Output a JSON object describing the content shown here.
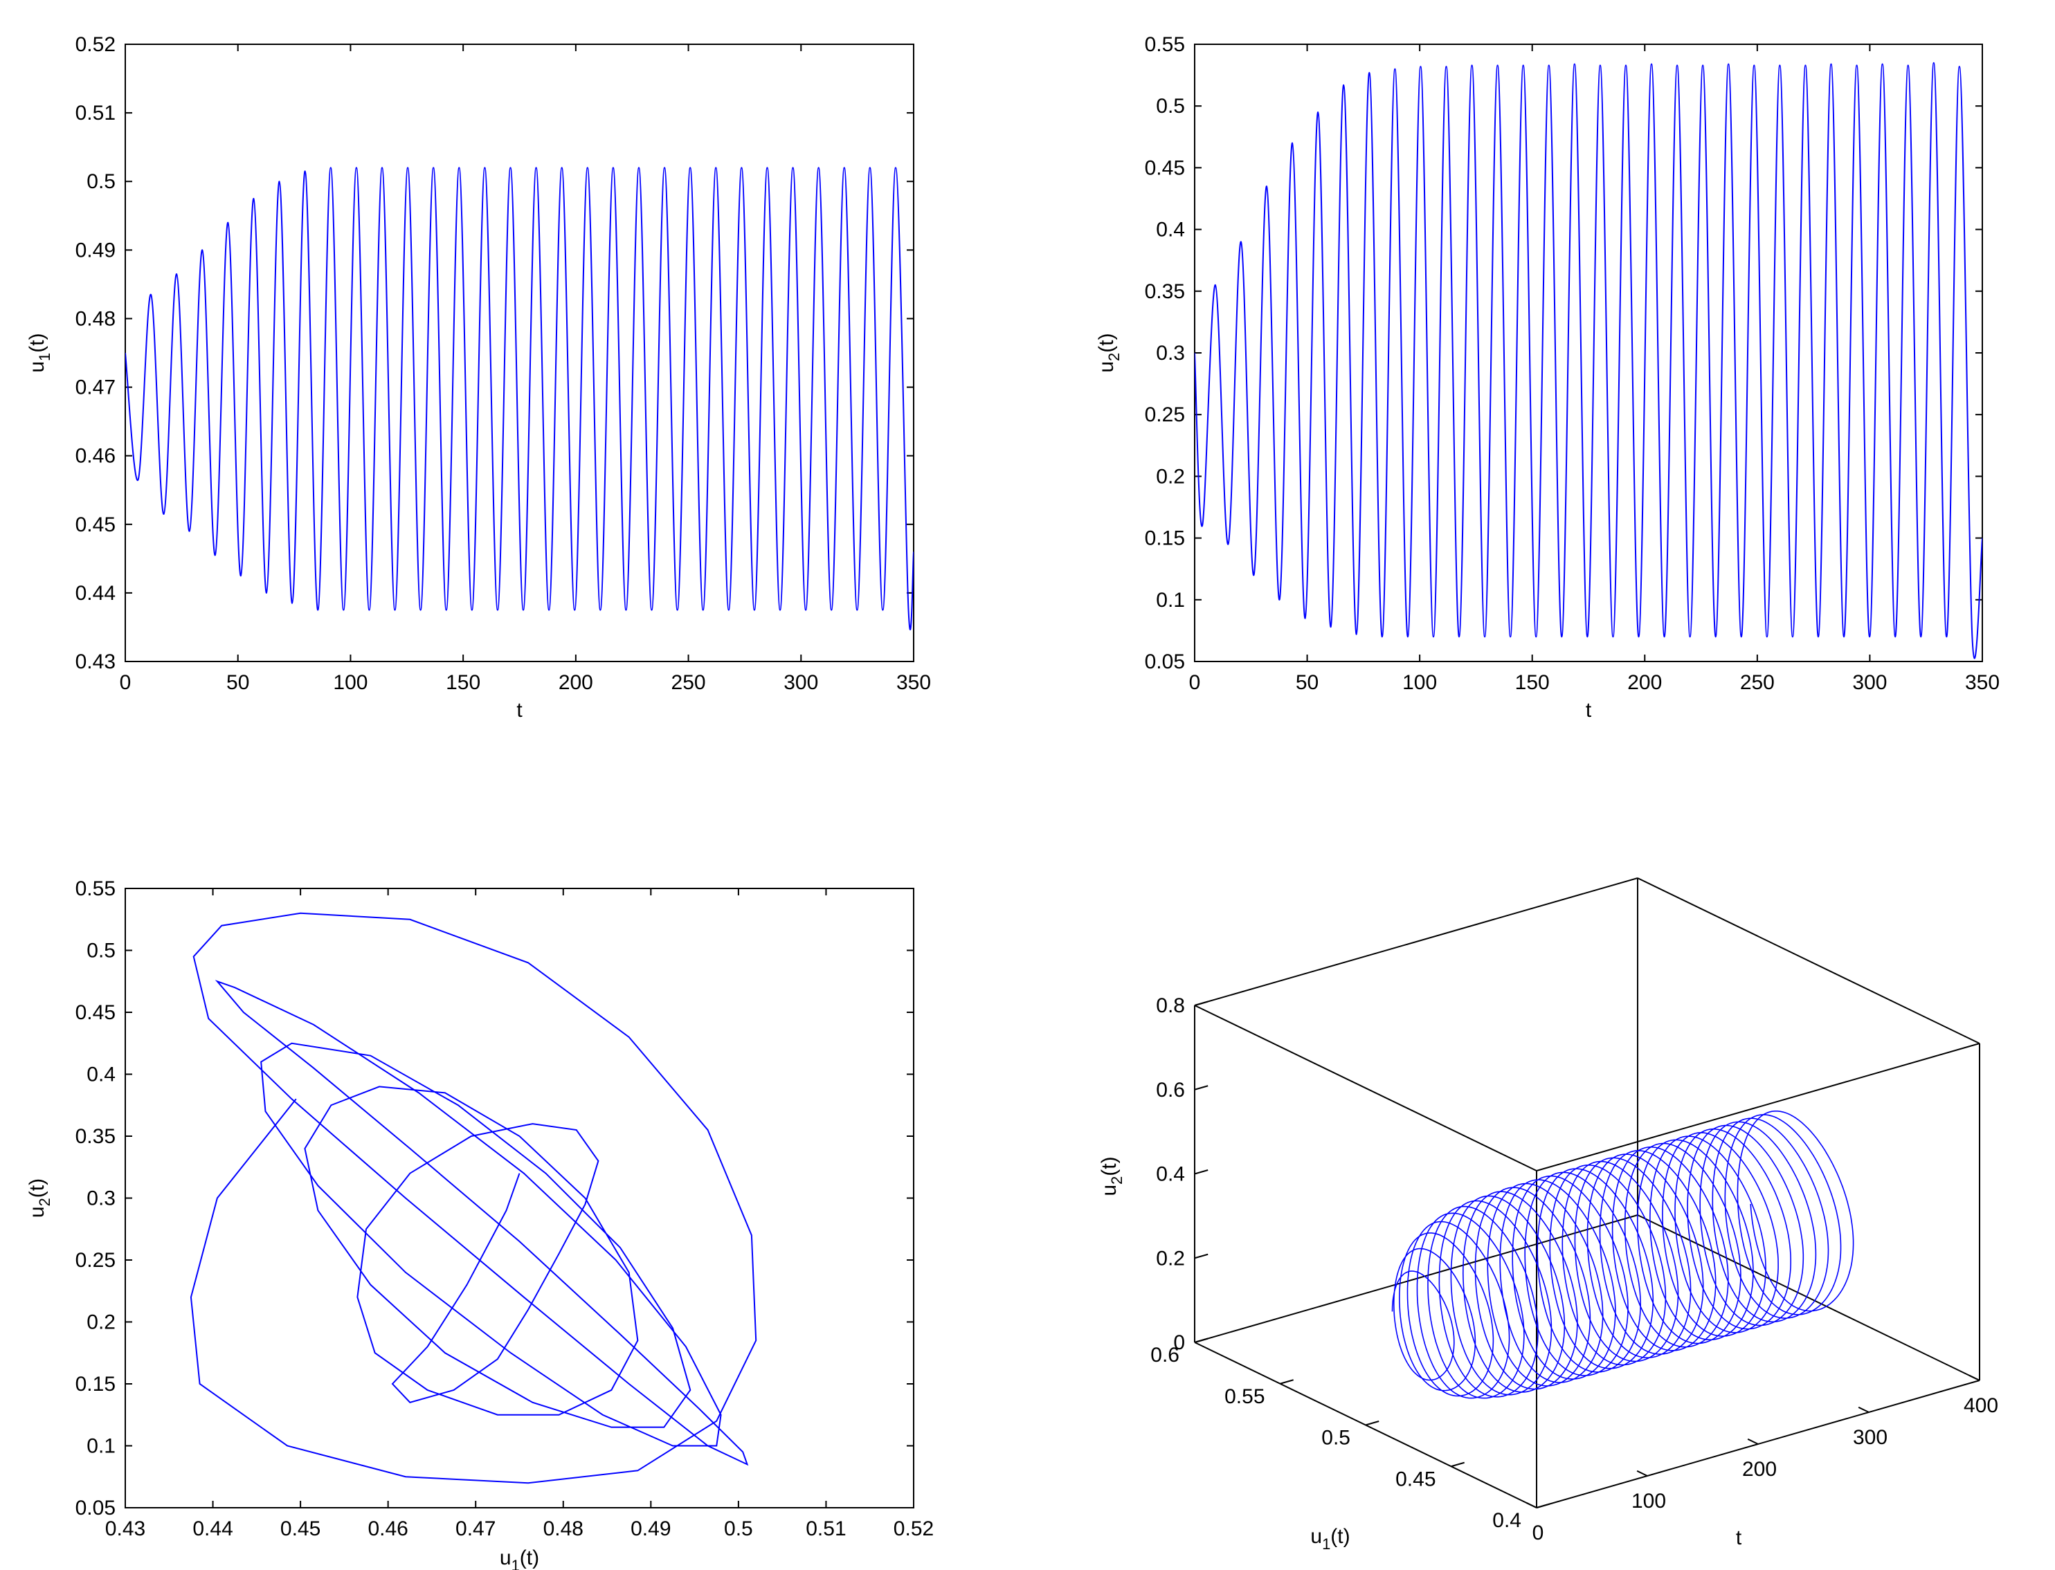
{
  "chart_data": [
    {
      "type": "line",
      "panel": "top-left",
      "xlabel": "t",
      "ylabel_base": "u",
      "ylabel_sub": "1",
      "ylabel_tail": "(t)",
      "xlim": [
        0,
        350
      ],
      "ylim": [
        0.43,
        0.52
      ],
      "xticks": [
        "0",
        "50",
        "100",
        "150",
        "200",
        "250",
        "300",
        "350"
      ],
      "yticks": [
        "0.43",
        "0.44",
        "0.45",
        "0.46",
        "0.47",
        "0.48",
        "0.49",
        "0.5",
        "0.51",
        "0.52"
      ],
      "grid": false,
      "series": [
        {
          "color": "#0000ff",
          "x": [
            0,
            5.7,
            11.4,
            17.1,
            22.8,
            28.5,
            34.2,
            39.9,
            45.6,
            51.3,
            57.0,
            62.7,
            68.4,
            74.1,
            79.8,
            85.5,
            91.2,
            96.9,
            102.6,
            108.3,
            114.0,
            119.7,
            125.4,
            131.1,
            136.8,
            142.5,
            148.2,
            153.9,
            159.6,
            165.3,
            171.0,
            176.7,
            182.4,
            188.1,
            193.8,
            199.5,
            205.2,
            210.9,
            216.6,
            222.3,
            228.0,
            233.7,
            239.4,
            245.1,
            250.8,
            256.5,
            262.2,
            267.9,
            273.6,
            279.3,
            285.0,
            290.7,
            296.4,
            302.1,
            307.8,
            313.5,
            319.2,
            324.9,
            330.6,
            336.3,
            342.0,
            347.7,
            350
          ],
          "y": [
            0.475,
            0.4565,
            0.4835,
            0.4515,
            0.4865,
            0.449,
            0.49,
            0.4455,
            0.494,
            0.4425,
            0.4975,
            0.44,
            0.5,
            0.4385,
            0.5015,
            0.4375,
            0.502,
            0.4375,
            0.502,
            0.4375,
            0.502,
            0.4375,
            0.502,
            0.4375,
            0.502,
            0.4375,
            0.502,
            0.4375,
            0.502,
            0.4375,
            0.502,
            0.4375,
            0.502,
            0.4375,
            0.502,
            0.4375,
            0.502,
            0.4375,
            0.502,
            0.4375,
            0.502,
            0.4375,
            0.502,
            0.4375,
            0.502,
            0.4375,
            0.502,
            0.4375,
            0.502,
            0.4375,
            0.502,
            0.4375,
            0.502,
            0.4375,
            0.502,
            0.4375,
            0.502,
            0.4375,
            0.502,
            0.4375,
            0.502,
            0.4375,
            0.446
          ]
        }
      ]
    },
    {
      "type": "line",
      "panel": "top-right",
      "xlabel": "t",
      "ylabel_base": "u",
      "ylabel_sub": "2",
      "ylabel_tail": "(t)",
      "xlim": [
        0,
        350
      ],
      "ylim": [
        0.05,
        0.55
      ],
      "xticks": [
        "0",
        "50",
        "100",
        "150",
        "200",
        "250",
        "300",
        "350"
      ],
      "yticks": [
        "0.05",
        "0.1",
        "0.15",
        "0.2",
        "0.25",
        "0.3",
        "0.35",
        "0.4",
        "0.45",
        "0.5",
        "0.55"
      ],
      "grid": false,
      "series": [
        {
          "color": "#0000ff",
          "x": [
            0,
            3.4,
            9.2,
            14.9,
            20.6,
            26.3,
            32.0,
            37.7,
            43.4,
            49.1,
            54.8,
            60.5,
            66.2,
            71.9,
            77.6,
            83.3,
            89.0,
            94.7,
            100.4,
            106.1,
            111.8,
            117.5,
            123.2,
            128.9,
            134.6,
            140.3,
            146.0,
            151.7,
            157.4,
            163.1,
            168.8,
            174.5,
            180.2,
            185.9,
            191.6,
            197.3,
            203.0,
            208.7,
            214.4,
            220.1,
            225.8,
            231.5,
            237.2,
            242.9,
            248.6,
            254.3,
            260.0,
            265.7,
            271.4,
            277.1,
            282.8,
            288.5,
            294.2,
            299.9,
            305.6,
            311.3,
            317.0,
            322.7,
            328.4,
            334.1,
            339.8,
            345.5,
            350
          ],
          "y": [
            0.3,
            0.16,
            0.355,
            0.145,
            0.39,
            0.12,
            0.435,
            0.1,
            0.47,
            0.085,
            0.495,
            0.078,
            0.517,
            0.072,
            0.527,
            0.07,
            0.53,
            0.07,
            0.532,
            0.07,
            0.532,
            0.07,
            0.533,
            0.07,
            0.533,
            0.07,
            0.533,
            0.07,
            0.533,
            0.07,
            0.534,
            0.07,
            0.533,
            0.07,
            0.533,
            0.07,
            0.534,
            0.07,
            0.533,
            0.07,
            0.533,
            0.07,
            0.534,
            0.07,
            0.533,
            0.07,
            0.533,
            0.07,
            0.533,
            0.07,
            0.534,
            0.07,
            0.533,
            0.07,
            0.534,
            0.07,
            0.533,
            0.07,
            0.535,
            0.07,
            0.532,
            0.07,
            0.15
          ]
        }
      ]
    },
    {
      "type": "line",
      "panel": "bottom-left",
      "xlabel_base": "u",
      "xlabel_sub": "1",
      "xlabel_tail": "(t)",
      "ylabel_base": "u",
      "ylabel_sub": "2",
      "ylabel_tail": "(t)",
      "xlim": [
        0.43,
        0.52
      ],
      "ylim": [
        0.05,
        0.55
      ],
      "xticks": [
        "0.43",
        "0.44",
        "0.45",
        "0.46",
        "0.47",
        "0.48",
        "0.49",
        "0.5",
        "0.51",
        "0.52"
      ],
      "yticks": [
        "0.05",
        "0.1",
        "0.15",
        "0.2",
        "0.25",
        "0.3",
        "0.35",
        "0.4",
        "0.45",
        "0.5",
        "0.55"
      ],
      "grid": false,
      "note_phase": "spiral trajectory u2 versus u1 converging to limit cycle",
      "series": [
        {
          "color": "#0000ff",
          "x": [
            0.475,
            0.4735,
            0.469,
            0.4645,
            0.4605,
            0.4625,
            0.4675,
            0.4725,
            0.476,
            0.4795,
            0.4825,
            0.484,
            0.4815,
            0.4765,
            0.4695,
            0.4625,
            0.4575,
            0.4565,
            0.4585,
            0.4645,
            0.4725,
            0.4795,
            0.4855,
            0.4885,
            0.4875,
            0.4825,
            0.475,
            0.4665,
            0.459,
            0.4535,
            0.4505,
            0.452,
            0.458,
            0.4665,
            0.4765,
            0.4855,
            0.4915,
            0.4945,
            0.4925,
            0.4865,
            0.478,
            0.468,
            0.458,
            0.449,
            0.4455,
            0.446,
            0.452,
            0.462,
            0.474,
            0.4845,
            0.4925,
            0.4975,
            0.498,
            0.494,
            0.486,
            0.4755,
            0.4635,
            0.4515,
            0.4425,
            0.4405,
            0.4435,
            0.4515,
            0.4625,
            0.475,
            0.4865,
            0.4955,
            0.5005,
            0.501,
            0.4965,
            0.4875,
            0.4755,
            0.462,
            0.449,
            0.4395,
            0.4378,
            0.441,
            0.45,
            0.4625,
            0.476,
            0.4875,
            0.4965,
            0.5015,
            0.502,
            0.4975,
            0.4885,
            0.476,
            0.462,
            0.4485,
            0.4385,
            0.4375,
            0.4405,
            0.4495
          ],
          "y": [
            0.32,
            0.29,
            0.23,
            0.18,
            0.15,
            0.135,
            0.145,
            0.17,
            0.21,
            0.255,
            0.295,
            0.33,
            0.355,
            0.36,
            0.35,
            0.32,
            0.275,
            0.22,
            0.175,
            0.145,
            0.125,
            0.125,
            0.145,
            0.185,
            0.24,
            0.3,
            0.35,
            0.385,
            0.39,
            0.375,
            0.34,
            0.29,
            0.23,
            0.175,
            0.135,
            0.115,
            0.115,
            0.145,
            0.195,
            0.26,
            0.32,
            0.375,
            0.415,
            0.425,
            0.41,
            0.37,
            0.31,
            0.24,
            0.175,
            0.125,
            0.1,
            0.1,
            0.125,
            0.18,
            0.25,
            0.32,
            0.385,
            0.44,
            0.47,
            0.475,
            0.45,
            0.405,
            0.34,
            0.265,
            0.19,
            0.13,
            0.095,
            0.085,
            0.1,
            0.15,
            0.22,
            0.3,
            0.38,
            0.445,
            0.495,
            0.52,
            0.53,
            0.525,
            0.49,
            0.43,
            0.355,
            0.27,
            0.185,
            0.12,
            0.08,
            0.07,
            0.075,
            0.1,
            0.15,
            0.22,
            0.3,
            0.38
          ]
        }
      ]
    },
    {
      "type": "line",
      "panel": "bottom-right",
      "projection": "3d",
      "xlabel": "t",
      "ylabel_base": "u",
      "ylabel_sub": "1",
      "ylabel_tail": "(t)",
      "zlabel_base": "u",
      "zlabel_sub": "2",
      "zlabel_tail": "(t)",
      "tlim": [
        0,
        400
      ],
      "u1lim": [
        0.4,
        0.6
      ],
      "u2lim": [
        0,
        0.8
      ],
      "tticks": [
        "0",
        "100",
        "200",
        "300",
        "400"
      ],
      "u1ticks": [
        "0.4",
        "0.45",
        "0.5",
        "0.55",
        "0.6"
      ],
      "u2ticks": [
        "0",
        "0.2",
        "0.4",
        "0.6",
        "0.8"
      ],
      "grid": false,
      "series": [
        {
          "color": "#0000ff",
          "t_start": 0,
          "t_end": 350,
          "period": 11.3,
          "u1_center": 0.47,
          "u1_amp": 0.032,
          "u2_center": 0.3,
          "u2_amp": 0.23
        }
      ]
    }
  ]
}
